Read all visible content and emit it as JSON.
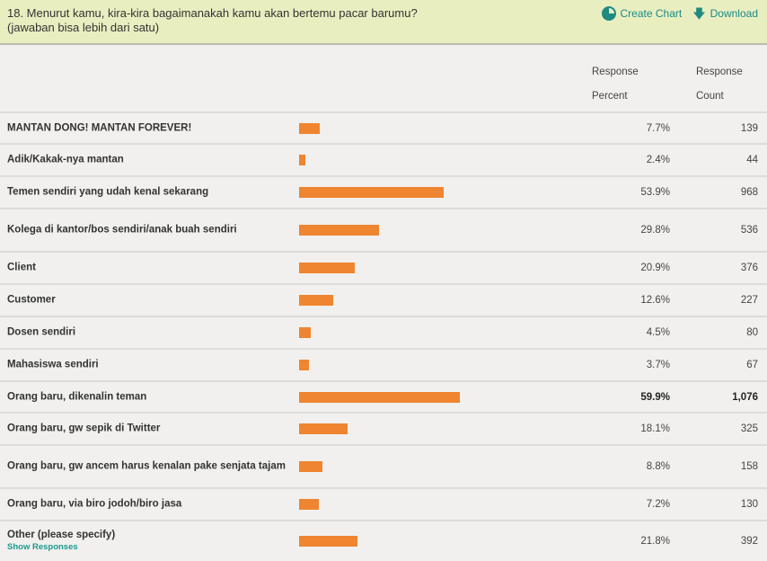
{
  "question": {
    "line1": "18. Menurut kamu, kira-kira bagaimanakah kamu akan bertemu pacar barumu?",
    "line2": "(jawaban bisa lebih dari satu)"
  },
  "actions": {
    "create_chart": "Create Chart",
    "download": "Download"
  },
  "columns": {
    "percent_line1": "Response",
    "percent_line2": "Percent",
    "count_line1": "Response",
    "count_line2": "Count"
  },
  "accent": "#ef8530",
  "rows": [
    {
      "label": "MANTAN DONG! MANTAN FOREVER!",
      "percent": "7.7%",
      "value": 7.7,
      "count": "139"
    },
    {
      "label": "Adik/Kakak-nya mantan",
      "percent": "2.4%",
      "value": 2.4,
      "count": "44"
    },
    {
      "label": "Temen sendiri yang udah kenal sekarang",
      "percent": "53.9%",
      "value": 53.9,
      "count": "968"
    },
    {
      "label": "Kolega di kantor/bos sendiri/anak buah sendiri",
      "percent": "29.8%",
      "value": 29.8,
      "count": "536"
    },
    {
      "label": "Client",
      "percent": "20.9%",
      "value": 20.9,
      "count": "376"
    },
    {
      "label": "Customer",
      "percent": "12.6%",
      "value": 12.6,
      "count": "227"
    },
    {
      "label": "Dosen sendiri",
      "percent": "4.5%",
      "value": 4.5,
      "count": "80"
    },
    {
      "label": "Mahasiswa sendiri",
      "percent": "3.7%",
      "value": 3.7,
      "count": "67"
    },
    {
      "label": "Orang baru, dikenalin teman",
      "percent": "59.9%",
      "value": 59.9,
      "count": "1,076",
      "max": true
    },
    {
      "label": "Orang baru, gw sepik di Twitter",
      "percent": "18.1%",
      "value": 18.1,
      "count": "325"
    },
    {
      "label": "Orang baru, gw ancem harus kenalan pake senjata tajam",
      "percent": "8.8%",
      "value": 8.8,
      "count": "158"
    },
    {
      "label": "Orang baru, via biro jodoh/biro jasa",
      "percent": "7.2%",
      "value": 7.2,
      "count": "130"
    },
    {
      "label": "Other (please specify)",
      "percent": "21.8%",
      "value": 21.8,
      "count": "392",
      "link": "Show Responses"
    }
  ]
}
